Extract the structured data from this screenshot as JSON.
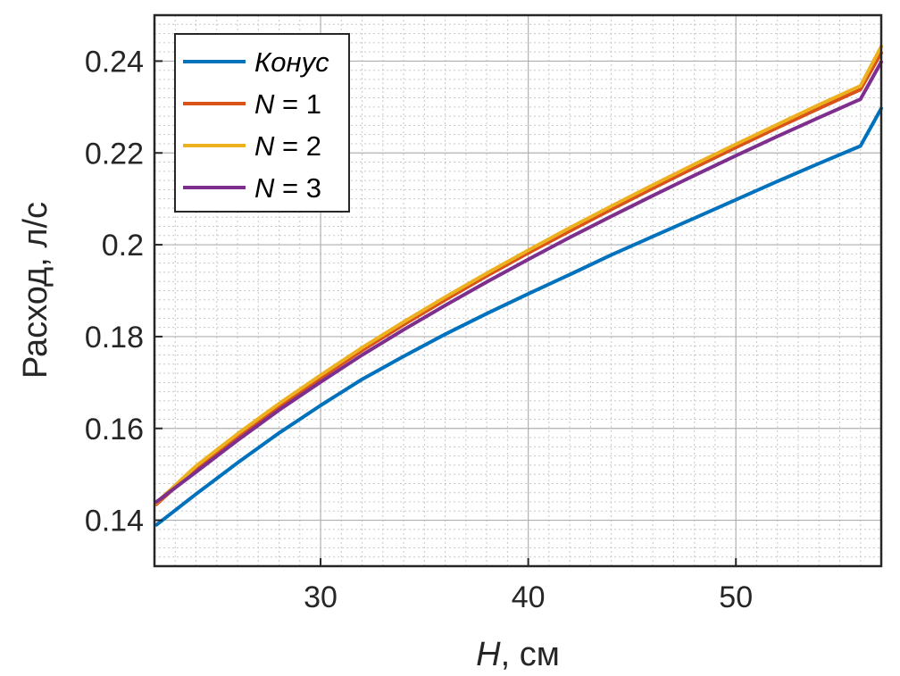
{
  "chart_data": {
    "type": "line",
    "title": "",
    "xlabel_italic": "H",
    "xlabel_rest": ", см",
    "ylabel": "Расход, л/с",
    "xlim": [
      22,
      57
    ],
    "ylim": [
      0.13,
      0.25
    ],
    "xticks": [
      30,
      40,
      50
    ],
    "xtick_labels": [
      "30",
      "40",
      "50"
    ],
    "yticks": [
      0.14,
      0.16,
      0.18,
      0.2,
      0.22,
      0.24
    ],
    "ytick_labels": [
      "0.14",
      "0.16",
      "0.18",
      "0.2",
      "0.22",
      "0.24"
    ],
    "grid": true,
    "minor_grid": true,
    "legend_position": "top-left",
    "x": [
      22.1,
      24,
      26,
      28,
      30,
      32,
      34,
      36,
      38,
      40,
      42,
      44,
      46,
      48,
      50,
      52,
      54,
      56,
      57
    ],
    "series": [
      {
        "name": "Конус",
        "legend_italic": "Конус",
        "legend_rest": "",
        "color": "#0072BD",
        "values": [
          0.139,
          0.1457,
          0.1525,
          0.159,
          0.165,
          0.1707,
          0.1757,
          0.1805,
          0.185,
          0.1893,
          0.1935,
          0.1978,
          0.2018,
          0.2058,
          0.2098,
          0.2138,
          0.2177,
          0.2215,
          0.2297
        ]
      },
      {
        "name": "N = 1",
        "legend_italic": "N",
        "legend_rest": " = 1",
        "color": "#D95319",
        "values": [
          0.1435,
          0.1513,
          0.1582,
          0.1648,
          0.171,
          0.177,
          0.1826,
          0.188,
          0.1932,
          0.1982,
          0.203,
          0.2077,
          0.2123,
          0.2168,
          0.2212,
          0.2255,
          0.2297,
          0.2338,
          0.2418
        ]
      },
      {
        "name": "N = 2",
        "legend_italic": "N",
        "legend_rest": " = 2",
        "color": "#EDB120",
        "values": [
          0.1438,
          0.1518,
          0.1588,
          0.1654,
          0.1716,
          0.1776,
          0.1832,
          0.1886,
          0.1938,
          0.1988,
          0.2037,
          0.2084,
          0.213,
          0.2175,
          0.2219,
          0.2262,
          0.2305,
          0.2346,
          0.2432
        ]
      },
      {
        "name": "N = 3",
        "legend_italic": "N",
        "legend_rest": " = 3",
        "color": "#7E2F8E",
        "values": [
          0.144,
          0.1505,
          0.1574,
          0.164,
          0.1701,
          0.176,
          0.1815,
          0.1868,
          0.1919,
          0.1968,
          0.2016,
          0.2062,
          0.2107,
          0.2151,
          0.2194,
          0.2236,
          0.2277,
          0.2317,
          0.2398
        ]
      }
    ]
  }
}
